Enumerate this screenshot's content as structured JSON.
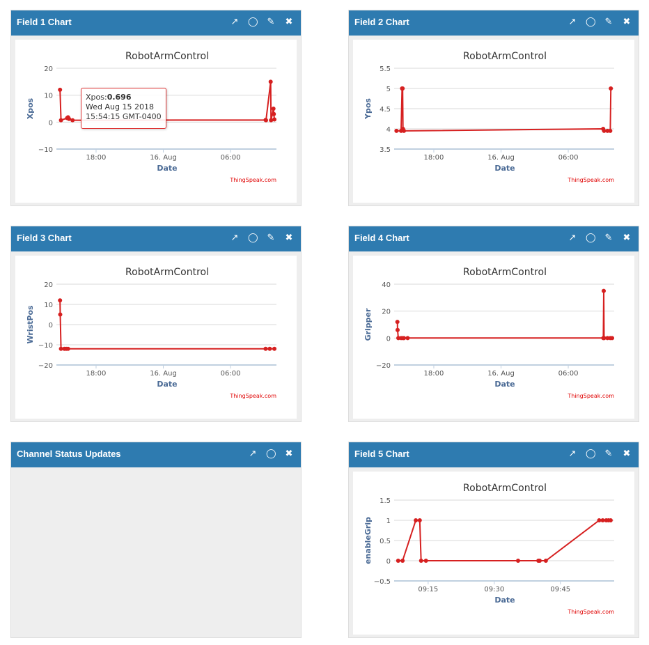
{
  "icons": {
    "open": "external-link-icon",
    "comment": "comment-icon",
    "edit": "pencil-icon",
    "close": "close-icon"
  },
  "colors": {
    "header": "#2e7bb0",
    "line": "#d62020",
    "watermark": "#e00000"
  },
  "status_panel": {
    "title": "Channel Status Updates"
  },
  "tooltip": {
    "label": "Xpos:",
    "value": "0.696",
    "date": "Wed Aug 15 2018",
    "time": "15:54:15 GMT-0400"
  },
  "chart_data": [
    {
      "panel_title": "Field 1 Chart",
      "type": "line",
      "title": "RobotArmControl",
      "xlabel": "Date",
      "ylabel": "Xpos",
      "credit": "ThingSpeak.com",
      "ylim": [
        -10,
        20
      ],
      "yticks": [
        20,
        10,
        0,
        -10
      ],
      "xlim": [
        "2018-08-15T14:35",
        "2018-08-16T10:06"
      ],
      "xticks": [
        {
          "t": "2018-08-15T18:00",
          "label": "18:00"
        },
        {
          "t": "2018-08-16T00:00",
          "label": "16. Aug"
        },
        {
          "t": "2018-08-16T06:00",
          "label": "06:00"
        }
      ],
      "x": [
        "2018-08-15T14:47",
        "2018-08-15T14:52",
        "2018-08-15T15:25",
        "2018-08-15T15:30",
        "2018-08-15T15:35",
        "2018-08-15T15:54",
        "2018-08-16T09:08",
        "2018-08-16T09:10",
        "2018-08-16T09:35",
        "2018-08-16T09:37",
        "2018-08-16T09:50",
        "2018-08-16T09:52",
        "2018-08-16T09:55"
      ],
      "y": [
        12,
        0.7,
        1.5,
        1.8,
        1.2,
        0.696,
        0.8,
        0.7,
        15,
        0.7,
        5,
        3,
        1
      ]
    },
    {
      "panel_title": "Field 2 Chart",
      "type": "line",
      "title": "RobotArmControl",
      "xlabel": "Date",
      "ylabel": "Ypos",
      "credit": "ThingSpeak.com",
      "ylim": [
        3.5,
        5.5
      ],
      "yticks": [
        5.5,
        5,
        4.5,
        4,
        3.5
      ],
      "xlim": [
        "2018-08-15T14:35",
        "2018-08-16T10:06"
      ],
      "xticks": [
        {
          "t": "2018-08-15T18:00",
          "label": "18:00"
        },
        {
          "t": "2018-08-16T00:00",
          "label": "16. Aug"
        },
        {
          "t": "2018-08-16T06:00",
          "label": "06:00"
        }
      ],
      "x": [
        "2018-08-15T14:40",
        "2018-08-15T15:05",
        "2018-08-15T15:10",
        "2018-08-15T15:13",
        "2018-08-15T15:15",
        "2018-08-15T15:20",
        "2018-08-16T09:07",
        "2018-08-16T09:12",
        "2018-08-16T09:30",
        "2018-08-16T09:45",
        "2018-08-16T09:48"
      ],
      "y": [
        3.95,
        3.95,
        5,
        5,
        4,
        3.95,
        4,
        3.95,
        3.95,
        3.95,
        5
      ]
    },
    {
      "panel_title": "Field 3 Chart",
      "type": "line",
      "title": "RobotArmControl",
      "xlabel": "Date",
      "ylabel": "WristPos",
      "credit": "ThingSpeak.com",
      "ylim": [
        -20,
        20
      ],
      "yticks": [
        20,
        10,
        0,
        -10,
        -20
      ],
      "xlim": [
        "2018-08-15T14:35",
        "2018-08-16T10:06"
      ],
      "xticks": [
        {
          "t": "2018-08-15T18:00",
          "label": "18:00"
        },
        {
          "t": "2018-08-16T00:00",
          "label": "16. Aug"
        },
        {
          "t": "2018-08-16T06:00",
          "label": "06:00"
        }
      ],
      "x": [
        "2018-08-15T14:47",
        "2018-08-15T14:48",
        "2018-08-15T14:52",
        "2018-08-15T15:10",
        "2018-08-15T15:20",
        "2018-08-15T15:30",
        "2018-08-16T09:08",
        "2018-08-16T09:30",
        "2018-08-16T09:55"
      ],
      "y": [
        12,
        5,
        -12,
        -12,
        -12,
        -12,
        -12,
        -12,
        -12
      ]
    },
    {
      "panel_title": "Field 4 Chart",
      "type": "line",
      "title": "RobotArmControl",
      "xlabel": "Date",
      "ylabel": "Gripper",
      "credit": "ThingSpeak.com",
      "ylim": [
        -20,
        40
      ],
      "yticks": [
        40,
        20,
        0,
        -20
      ],
      "xlim": [
        "2018-08-15T14:35",
        "2018-08-16T10:06"
      ],
      "xticks": [
        {
          "t": "2018-08-15T18:00",
          "label": "18:00"
        },
        {
          "t": "2018-08-16T00:00",
          "label": "16. Aug"
        },
        {
          "t": "2018-08-16T06:00",
          "label": "06:00"
        }
      ],
      "x": [
        "2018-08-15T14:45",
        "2018-08-15T14:46",
        "2018-08-15T14:50",
        "2018-08-15T15:05",
        "2018-08-15T15:15",
        "2018-08-15T15:20",
        "2018-08-15T15:40",
        "2018-08-16T09:08",
        "2018-08-16T09:10",
        "2018-08-16T09:12",
        "2018-08-16T09:30",
        "2018-08-16T09:45",
        "2018-08-16T09:55"
      ],
      "y": [
        12,
        6,
        0,
        0,
        0,
        0,
        0,
        0,
        35,
        0,
        0,
        0,
        0
      ]
    },
    {
      "panel_title": "Field 5 Chart",
      "type": "line",
      "title": "RobotArmControl",
      "xlabel": "Date",
      "ylabel": "enableGrip",
      "credit": "ThingSpeak.com",
      "ylim": [
        -0.5,
        1.5
      ],
      "yticks": [
        1.5,
        1,
        0.5,
        0,
        -0.5
      ],
      "xlim": [
        "2018-08-16T09:07.6",
        "2018-08-16T09:57.2"
      ],
      "xticks": [
        {
          "t": "2018-08-16T09:15",
          "label": "09:15"
        },
        {
          "t": "2018-08-16T09:30",
          "label": "09:30"
        },
        {
          "t": "2018-08-16T09:45",
          "label": "09:45"
        }
      ],
      "x": [
        "2018-08-16T09:08.2",
        "2018-08-16T09:09.2",
        "2018-08-16T09:12.2",
        "2018-08-16T09:13.1",
        "2018-08-16T09:13.4",
        "2018-08-16T09:14.5",
        "2018-08-16T09:35.4",
        "2018-08-16T09:40",
        "2018-08-16T09:40.3",
        "2018-08-16T09:41.7",
        "2018-08-16T09:53.8",
        "2018-08-16T09:54.6",
        "2018-08-16T09:55.4",
        "2018-08-16T09:55.9",
        "2018-08-16T09:56.4"
      ],
      "y": [
        0,
        0,
        1,
        1,
        0,
        0,
        0,
        0,
        0,
        0,
        1,
        1,
        1,
        1,
        1
      ]
    }
  ]
}
